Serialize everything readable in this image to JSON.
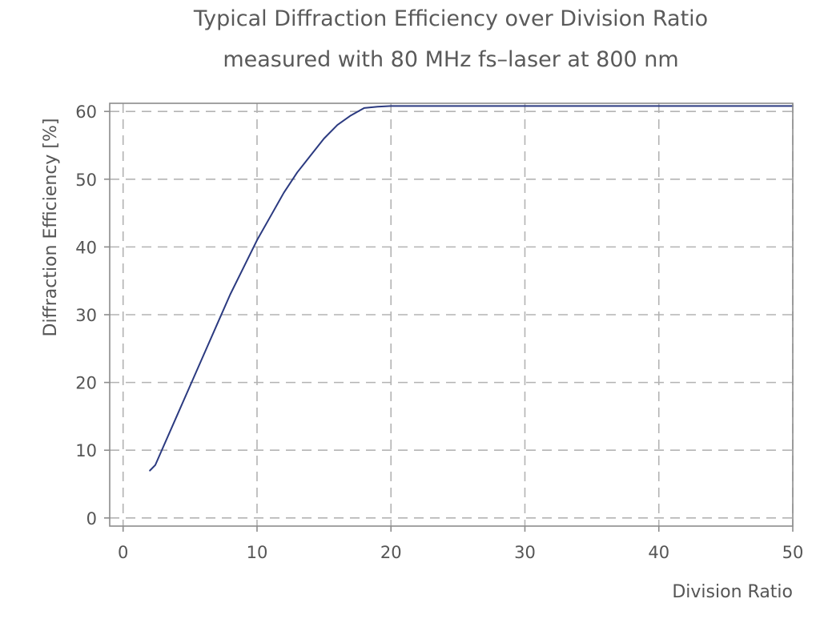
{
  "chart_data": {
    "type": "line",
    "title": "Typical Diffraction Efficiency over Division Ratio",
    "subtitle": "measured with 80 MHz fs–laser at 800 nm",
    "xlabel": "Division Ratio",
    "ylabel": "Diffraction Efficiency [%]",
    "xlim": [
      -1,
      50
    ],
    "ylim": [
      -1.2,
      61.2
    ],
    "xticks": [
      0,
      10,
      20,
      30,
      40,
      50
    ],
    "yticks": [
      0,
      10,
      20,
      30,
      40,
      50,
      60
    ],
    "grid": true,
    "legend": "none",
    "series": [
      {
        "color": "#2b3a80",
        "x": [
          2,
          2.4,
          3,
          4,
          5,
          6,
          7,
          8,
          9,
          10,
          11,
          12,
          13,
          14,
          15,
          16,
          17,
          18,
          19,
          20,
          25,
          30,
          35,
          40,
          45,
          50
        ],
        "y": [
          7,
          7.8,
          10.5,
          15,
          19.5,
          24,
          28.5,
          33,
          37,
          41,
          44.5,
          48,
          51,
          53.5,
          56,
          58,
          59.4,
          60.5,
          60.7,
          60.8,
          60.8,
          60.8,
          60.8,
          60.8,
          60.8,
          60.8
        ]
      }
    ]
  }
}
